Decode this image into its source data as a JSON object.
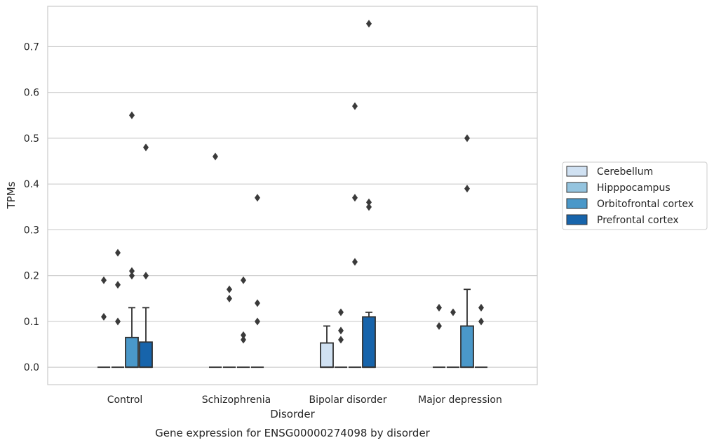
{
  "chart_data": {
    "type": "boxplot",
    "xlabel": "Disorder",
    "ylabel": "TPMs",
    "caption": "Gene expression for ENSG00000274098 by disorder",
    "ylim": [
      -0.038,
      0.788
    ],
    "yticks": [
      0.0,
      0.1,
      0.2,
      0.3,
      0.4,
      0.5,
      0.6,
      0.7
    ],
    "ytick_labels": [
      "0.0",
      "0.1",
      "0.2",
      "0.3",
      "0.4",
      "0.5",
      "0.6",
      "0.7"
    ],
    "grid": "horizontal",
    "legend_position": "right, outside",
    "categories": [
      "Control",
      "Schizophrenia",
      "Bipolar disorder",
      "Major depression"
    ],
    "series": [
      {
        "name": "Cerebellum",
        "color": "#d0e1f2",
        "boxes": [
          {
            "q1": 0,
            "median": 0,
            "q3": 0,
            "whisker_low": 0,
            "whisker_high": 0,
            "outliers": [
              0.19,
              0.11
            ]
          },
          {
            "q1": 0,
            "median": 0,
            "q3": 0,
            "whisker_low": 0,
            "whisker_high": 0,
            "outliers": [
              0.46
            ]
          },
          {
            "q1": 0,
            "median": 0,
            "q3": 0.053,
            "whisker_low": 0,
            "whisker_high": 0.09,
            "outliers": []
          },
          {
            "q1": 0,
            "median": 0,
            "q3": 0,
            "whisker_low": 0,
            "whisker_high": 0,
            "outliers": [
              0.13,
              0.09
            ]
          }
        ]
      },
      {
        "name": "Hipppocampus",
        "color": "#94c4df",
        "boxes": [
          {
            "q1": 0,
            "median": 0,
            "q3": 0,
            "whisker_low": 0,
            "whisker_high": 0,
            "outliers": [
              0.25,
              0.18,
              0.1
            ]
          },
          {
            "q1": 0,
            "median": 0,
            "q3": 0,
            "whisker_low": 0,
            "whisker_high": 0,
            "outliers": [
              0.17,
              0.15
            ]
          },
          {
            "q1": 0,
            "median": 0,
            "q3": 0,
            "whisker_low": 0,
            "whisker_high": 0,
            "outliers": [
              0.12,
              0.08,
              0.06
            ]
          },
          {
            "q1": 0,
            "median": 0,
            "q3": 0,
            "whisker_low": 0,
            "whisker_high": 0,
            "outliers": [
              0.12
            ]
          }
        ]
      },
      {
        "name": "Orbitofrontal cortex",
        "color": "#4a98c9",
        "boxes": [
          {
            "q1": 0,
            "median": 0,
            "q3": 0.065,
            "whisker_low": 0,
            "whisker_high": 0.13,
            "outliers": [
              0.55,
              0.21,
              0.2
            ]
          },
          {
            "q1": 0,
            "median": 0,
            "q3": 0,
            "whisker_low": 0,
            "whisker_high": 0,
            "outliers": [
              0.19,
              0.07,
              0.06
            ]
          },
          {
            "q1": 0,
            "median": 0,
            "q3": 0,
            "whisker_low": 0,
            "whisker_high": 0,
            "outliers": [
              0.57,
              0.37,
              0.23
            ]
          },
          {
            "q1": 0,
            "median": 0,
            "q3": 0.09,
            "whisker_low": 0,
            "whisker_high": 0.17,
            "outliers": [
              0.5,
              0.39
            ]
          }
        ]
      },
      {
        "name": "Prefrontal cortex",
        "color": "#1764ab",
        "boxes": [
          {
            "q1": 0,
            "median": 0,
            "q3": 0.055,
            "whisker_low": 0,
            "whisker_high": 0.13,
            "outliers": [
              0.48,
              0.2
            ]
          },
          {
            "q1": 0,
            "median": 0,
            "q3": 0,
            "whisker_low": 0,
            "whisker_high": 0,
            "outliers": [
              0.37,
              0.14,
              0.1
            ]
          },
          {
            "q1": 0,
            "median": 0,
            "q3": 0.11,
            "whisker_low": 0,
            "whisker_high": 0.12,
            "outliers": [
              0.75,
              0.36,
              0.35
            ]
          },
          {
            "q1": 0,
            "median": 0,
            "q3": 0,
            "whisker_low": 0,
            "whisker_high": 0,
            "outliers": [
              0.13,
              0.1
            ]
          }
        ]
      }
    ]
  }
}
